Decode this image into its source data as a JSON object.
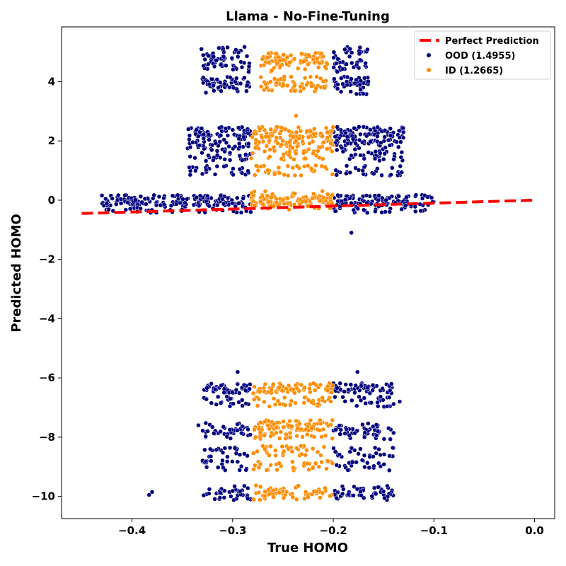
{
  "chart_data": {
    "type": "scatter",
    "title": "Llama - No-Fine-Tuning",
    "xlabel": "True HOMO",
    "ylabel": "Predicted HOMO",
    "xlim": [
      -0.47,
      0.02
    ],
    "ylim": [
      -10.75,
      5.85
    ],
    "xticks": [
      -0.4,
      -0.3,
      -0.2,
      -0.1,
      0.0
    ],
    "xtick_labels": [
      "−0.4",
      "−0.3",
      "−0.2",
      "−0.1",
      "0.0"
    ],
    "yticks": [
      4,
      2,
      0,
      -2,
      -4,
      -6,
      -8,
      -10
    ],
    "ytick_labels": [
      "4",
      "2",
      "0",
      "−2",
      "−4",
      "−6",
      "−8",
      "−10"
    ],
    "legend": {
      "position": "top-right",
      "entries": [
        "Perfect Prediction",
        "OOD (1.4955)",
        "ID (1.2665)"
      ]
    },
    "reference_line": {
      "name": "Perfect Prediction",
      "x": [
        -0.45,
        0.0
      ],
      "y": [
        -0.45,
        0.0
      ],
      "color": "#ff0000",
      "style": "dashed"
    },
    "series": [
      {
        "name": "OOD (1.4955)",
        "color": "#00007f",
        "clusters": [
          {
            "x_range": [
              -0.33,
              -0.282
            ],
            "y_levels": [
              4.0,
              4.7,
              5.0,
              4.5,
              3.75
            ]
          },
          {
            "x_range": [
              -0.2,
              -0.165
            ],
            "y_levels": [
              4.0,
              4.7,
              5.0,
              4.5,
              3.75
            ]
          },
          {
            "x_range": [
              -0.345,
              -0.282
            ],
            "y_levels": [
              2.3,
              1.85,
              2.0,
              1.5,
              1.0
            ]
          },
          {
            "x_range": [
              -0.2,
              -0.13
            ],
            "y_levels": [
              2.3,
              1.85,
              2.0,
              1.5,
              1.0
            ]
          },
          {
            "x_range": [
              -0.43,
              -0.282
            ],
            "y_levels": [
              0.0,
              -0.25
            ]
          },
          {
            "x_range": [
              -0.2,
              -0.1
            ],
            "y_levels": [
              0.0,
              -0.25
            ]
          },
          {
            "x_range": [
              -0.33,
              -0.282
            ],
            "y_levels": [
              -6.35,
              -6.8,
              -7.7,
              -7.9,
              -8.5,
              -8.95,
              -9.8,
              -9.95
            ]
          },
          {
            "x_range": [
              -0.2,
              -0.14
            ],
            "y_levels": [
              -6.35,
              -6.8,
              -7.7,
              -7.9,
              -8.5,
              -8.95,
              -9.8,
              -9.95
            ]
          }
        ],
        "outliers": [
          {
            "x": -0.331,
            "y": 5.1
          },
          {
            "x": -0.182,
            "y": -1.1
          },
          {
            "x": -0.295,
            "y": -5.8
          },
          {
            "x": -0.176,
            "y": -5.8
          },
          {
            "x": -0.383,
            "y": -9.95
          },
          {
            "x": -0.38,
            "y": -9.85
          },
          {
            "x": -0.334,
            "y": -7.6
          },
          {
            "x": -0.134,
            "y": -6.8
          },
          {
            "x": -0.145,
            "y": -7.7
          }
        ]
      },
      {
        "name": "ID (1.2665)",
        "color": "#ff8c00",
        "clusters": [
          {
            "x_range": [
              -0.272,
              -0.206
            ],
            "y_levels": [
              4.8,
              4.5,
              4.0,
              3.85
            ]
          },
          {
            "x_range": [
              -0.282,
              -0.2
            ],
            "y_levels": [
              2.3,
              2.0,
              1.85,
              1.5,
              1.0
            ]
          },
          {
            "x_range": [
              -0.282,
              -0.2
            ],
            "y_levels": [
              0.0,
              0.15,
              -0.15
            ]
          },
          {
            "x_range": [
              -0.28,
              -0.2
            ],
            "y_levels": [
              -6.35,
              -6.8
            ]
          },
          {
            "x_range": [
              -0.28,
              -0.2
            ],
            "y_levels": [
              -7.6,
              -7.9,
              -8.45,
              -8.95,
              -9.8,
              -9.95
            ]
          }
        ],
        "outliers": [
          {
            "x": -0.237,
            "y": 2.85
          },
          {
            "x": -0.236,
            "y": 1.15
          }
        ]
      }
    ]
  }
}
